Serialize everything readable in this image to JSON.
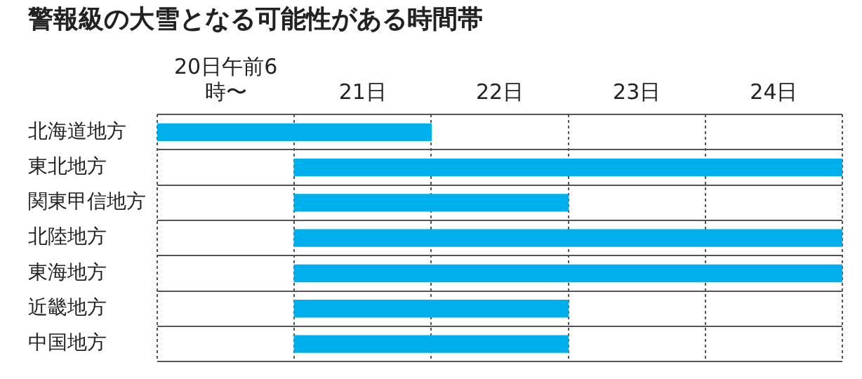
{
  "chart_data": {
    "type": "bar",
    "orientation": "horizontal",
    "title": "警報級の大雪となる可能性がある時間帯",
    "categories": [
      "北海道地方",
      "東北地方",
      "関東甲信地方",
      "北陸地方",
      "東海地方",
      "近畿地方",
      "中国地方"
    ],
    "base": [
      20,
      21,
      21,
      21,
      21,
      21,
      21
    ],
    "values": [
      2,
      4,
      2,
      4,
      4,
      2,
      2
    ],
    "color": "#00b0ec",
    "xlim": [
      20,
      25
    ],
    "xticks": [
      {
        "value": 20,
        "label": null
      },
      {
        "value": 20.5,
        "label": "20日午前6時〜"
      },
      {
        "value": 21,
        "label": null
      },
      {
        "value": 21.5,
        "label": "21日"
      },
      {
        "value": 22,
        "label": null
      },
      {
        "value": 22.5,
        "label": "22日"
      },
      {
        "value": 23,
        "label": null
      },
      {
        "value": 23.5,
        "label": "23日"
      },
      {
        "value": 24,
        "label": null
      },
      {
        "value": 24.5,
        "label": "24日"
      },
      {
        "value": 25,
        "label": null
      }
    ],
    "grid": true
  }
}
